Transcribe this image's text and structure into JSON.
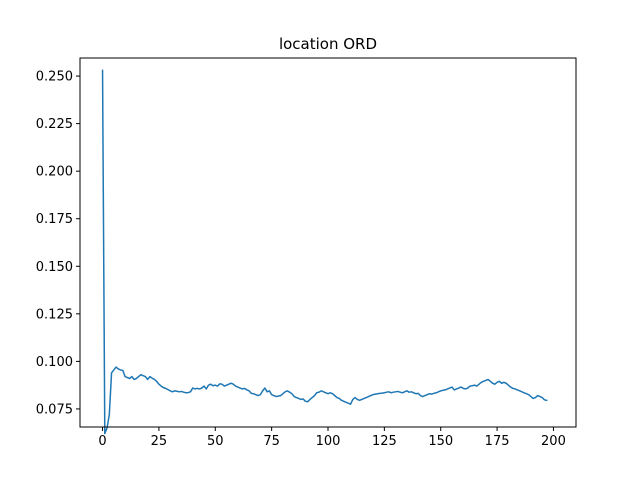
{
  "chart_data": {
    "type": "line",
    "title": "location ORD",
    "xlabel": "",
    "ylabel": "",
    "xlim": [
      -10,
      210
    ],
    "ylim": [
      0.0655,
      0.2595
    ],
    "grid": false,
    "x_ticks": [
      0,
      25,
      50,
      75,
      100,
      125,
      150,
      175,
      200
    ],
    "x_tick_labels": [
      "0",
      "25",
      "50",
      "75",
      "100",
      "125",
      "150",
      "175",
      "200"
    ],
    "y_ticks": [
      0.075,
      0.1,
      0.125,
      0.15,
      0.175,
      0.2,
      0.225,
      0.25
    ],
    "y_tick_labels": [
      "0.075",
      "0.100",
      "0.125",
      "0.150",
      "0.175",
      "0.200",
      "0.225",
      "0.250"
    ],
    "series": [
      {
        "name": "location ORD",
        "color": "#1f77b4",
        "x_start": 0,
        "x_step": 1,
        "values": [
          0.253,
          0.062,
          0.065,
          0.072,
          0.094,
          0.0955,
          0.097,
          0.096,
          0.0955,
          0.0952,
          0.092,
          0.0915,
          0.091,
          0.092,
          0.0905,
          0.091,
          0.092,
          0.093,
          0.0925,
          0.092,
          0.0905,
          0.092,
          0.0912,
          0.0905,
          0.0895,
          0.088,
          0.087,
          0.0862,
          0.0858,
          0.0852,
          0.0845,
          0.084,
          0.0845,
          0.0843,
          0.084,
          0.0842,
          0.0838,
          0.0835,
          0.0836,
          0.084,
          0.086,
          0.0855,
          0.0858,
          0.0855,
          0.086,
          0.087,
          0.0855,
          0.0875,
          0.088,
          0.0872,
          0.0875,
          0.087,
          0.0882,
          0.088,
          0.087,
          0.0875,
          0.088,
          0.0885,
          0.088,
          0.087,
          0.0865,
          0.086,
          0.0855,
          0.0858,
          0.085,
          0.0845,
          0.0832,
          0.083,
          0.0825,
          0.082,
          0.0825,
          0.0845,
          0.086,
          0.084,
          0.0845,
          0.0825,
          0.082,
          0.0815,
          0.0818,
          0.082,
          0.083,
          0.084,
          0.0845,
          0.0838,
          0.083,
          0.0815,
          0.081,
          0.0805,
          0.08,
          0.0802,
          0.079,
          0.0788,
          0.08,
          0.081,
          0.082,
          0.0835,
          0.0838,
          0.0845,
          0.084,
          0.0835,
          0.083,
          0.0835,
          0.083,
          0.082,
          0.081,
          0.0805,
          0.0795,
          0.079,
          0.0785,
          0.078,
          0.0775,
          0.08,
          0.081,
          0.08,
          0.0795,
          0.08,
          0.0805,
          0.081,
          0.0815,
          0.082,
          0.0825,
          0.0828,
          0.083,
          0.0832,
          0.0833,
          0.0835,
          0.0838,
          0.084,
          0.0835,
          0.0838,
          0.084,
          0.0842,
          0.0838,
          0.0835,
          0.084,
          0.0845,
          0.0838,
          0.084,
          0.0835,
          0.083,
          0.0832,
          0.082,
          0.0815,
          0.082,
          0.0825,
          0.083,
          0.0828,
          0.0832,
          0.0835,
          0.084,
          0.0845,
          0.0848,
          0.085,
          0.0855,
          0.086,
          0.0865,
          0.085,
          0.0855,
          0.086,
          0.0865,
          0.0858,
          0.0855,
          0.086,
          0.087,
          0.0872,
          0.0875,
          0.087,
          0.088,
          0.089,
          0.0895,
          0.09,
          0.0905,
          0.0895,
          0.0885,
          0.088,
          0.089,
          0.0895,
          0.0885,
          0.089,
          0.0885,
          0.0875,
          0.0865,
          0.0858,
          0.0855,
          0.085,
          0.0845,
          0.084,
          0.0835,
          0.083,
          0.0825,
          0.0815,
          0.0805,
          0.081,
          0.082,
          0.0815,
          0.081,
          0.0798,
          0.0795
        ]
      }
    ]
  }
}
